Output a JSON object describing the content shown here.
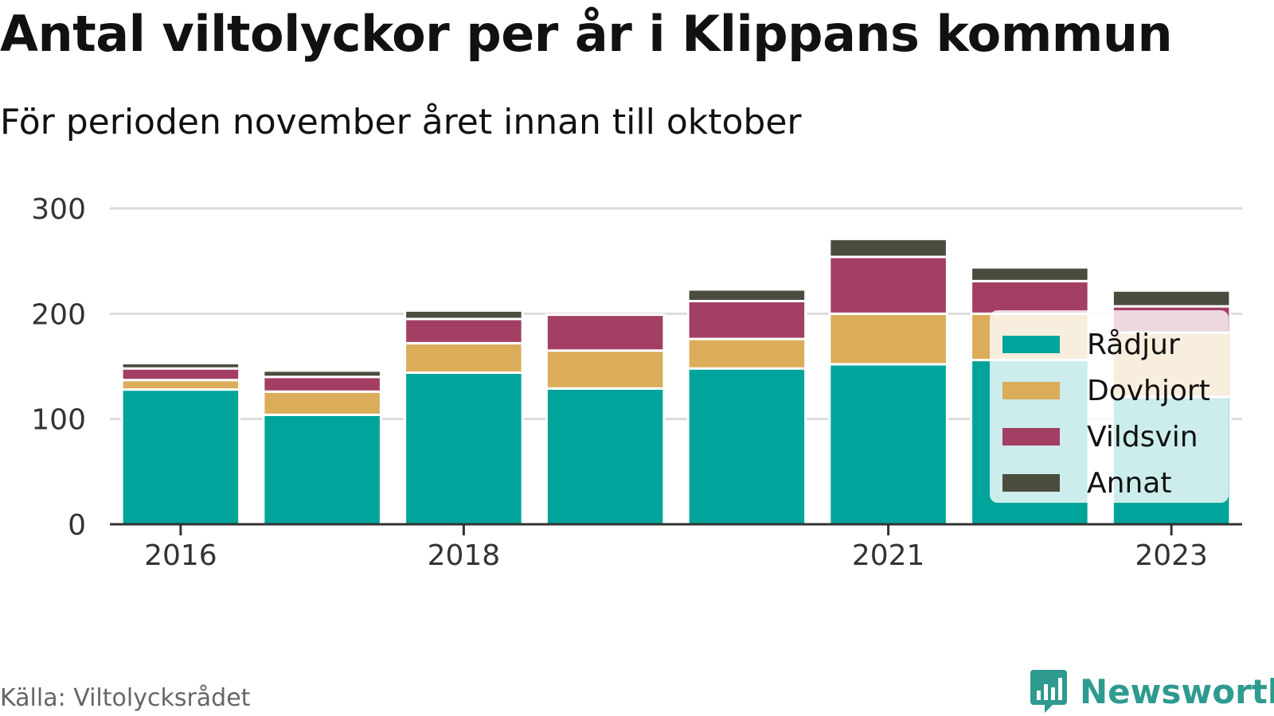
{
  "title": "Antal viltolyckor per år i Klippans kommun",
  "subtitle": "För perioden november året innan till oktober",
  "source": "Källa: Viltolycksrådet",
  "brand": {
    "name": "Newsworthy",
    "icon": "newsworthy-logo-icon",
    "color": "#2f9a8f"
  },
  "chart_data": {
    "type": "bar",
    "stacked": true,
    "categories": [
      "2016",
      "2017",
      "2018",
      "2019",
      "2020",
      "2021",
      "2022",
      "2023"
    ],
    "x_tick_labels": [
      "2016",
      "2018",
      "2021",
      "2023"
    ],
    "series": [
      {
        "name": "Rådjur",
        "color": "#00a49a",
        "values": [
          128,
          104,
          144,
          129,
          148,
          152,
          156,
          121
        ]
      },
      {
        "name": "Dovhjort",
        "color": "#dbac5a",
        "values": [
          9,
          22,
          28,
          36,
          28,
          48,
          44,
          61
        ]
      },
      {
        "name": "Vildsvin",
        "color": "#a33f64",
        "values": [
          11,
          14,
          23,
          34,
          36,
          54,
          31,
          25
        ]
      },
      {
        "name": "Annat",
        "color": "#4b4b3e",
        "values": [
          5,
          6,
          8,
          0,
          11,
          17,
          13,
          15
        ]
      }
    ],
    "ylim": [
      0,
      300
    ],
    "y_ticks": [
      0,
      100,
      200,
      300
    ],
    "grid": true,
    "legend_position": "right",
    "xlabel": "",
    "ylabel": ""
  }
}
